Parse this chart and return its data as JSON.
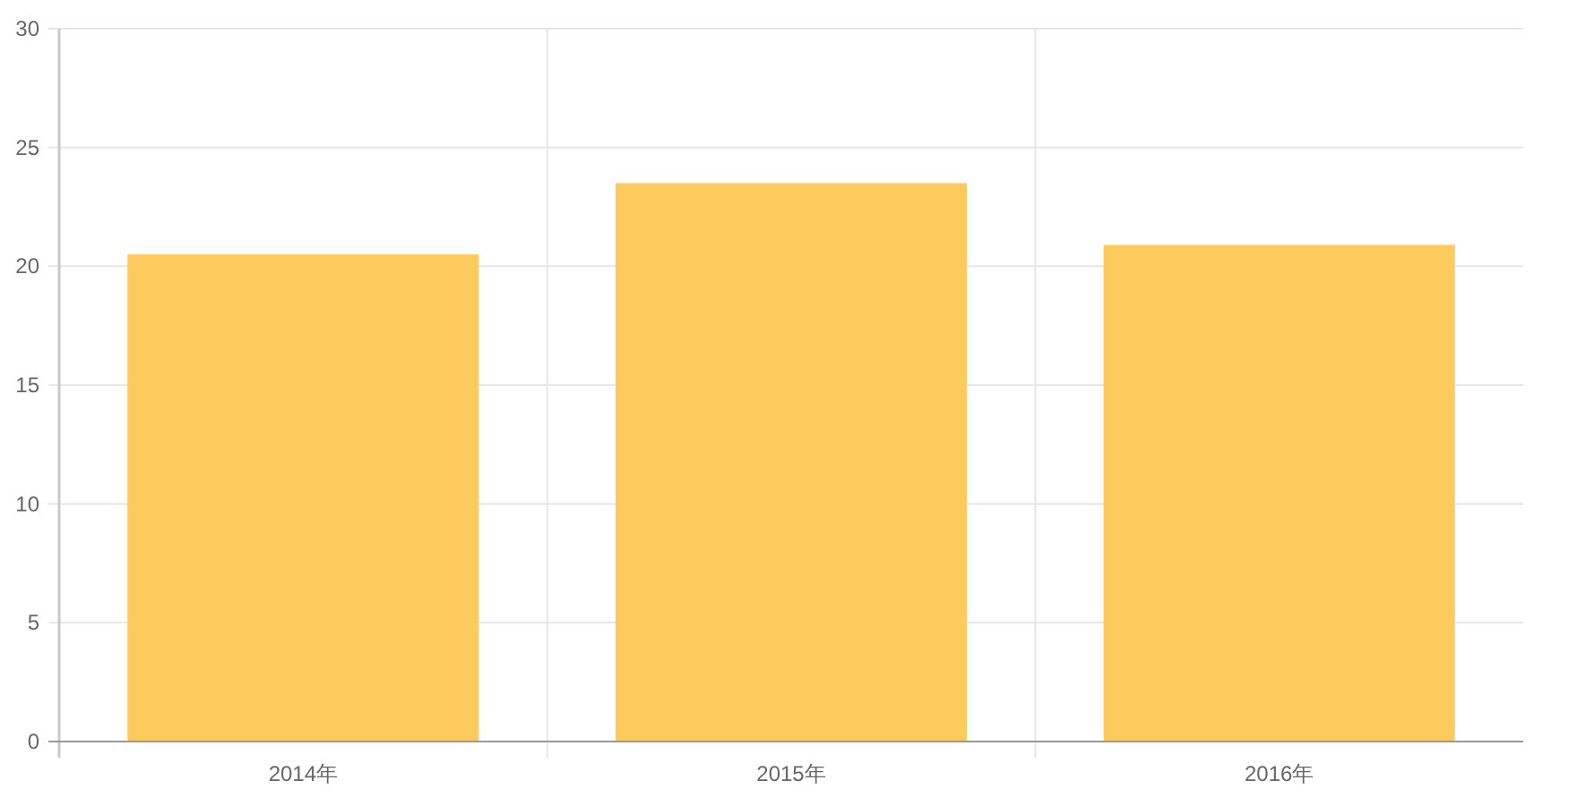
{
  "chart_data": {
    "type": "bar",
    "categories": [
      "2014年",
      "2015年",
      "2016年"
    ],
    "values": [
      20.5,
      23.5,
      20.9
    ],
    "color": "#fdcb5d",
    "ylim": [
      0,
      30
    ],
    "yticks": [
      0,
      5,
      10,
      15,
      20,
      25,
      30
    ],
    "grid": true
  }
}
